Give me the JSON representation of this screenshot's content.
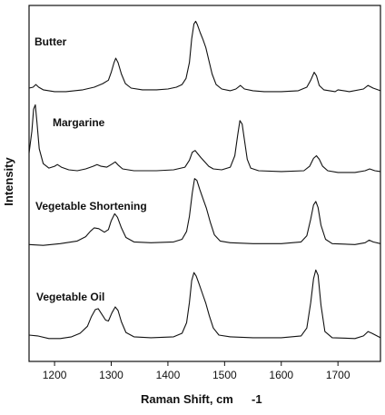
{
  "chart_data": {
    "type": "line",
    "xlabel": "Raman Shift, cm",
    "xlabel_superscript": "-1",
    "ylabel": "Intensity",
    "xlim": [
      1155,
      1775
    ],
    "ylim": [
      0,
      4.05
    ],
    "x_ticks": [
      1200,
      1300,
      1400,
      1500,
      1600,
      1700
    ],
    "grid": false,
    "legend": "none",
    "series": [
      {
        "name": "Butter",
        "offset": 3.02,
        "points": [
          [
            1155,
            0.09
          ],
          [
            1162,
            0.1
          ],
          [
            1167,
            0.13
          ],
          [
            1172,
            0.1
          ],
          [
            1180,
            0.07
          ],
          [
            1200,
            0.05
          ],
          [
            1220,
            0.05
          ],
          [
            1250,
            0.07
          ],
          [
            1270,
            0.1
          ],
          [
            1285,
            0.14
          ],
          [
            1295,
            0.18
          ],
          [
            1300,
            0.27
          ],
          [
            1305,
            0.38
          ],
          [
            1308,
            0.43
          ],
          [
            1312,
            0.38
          ],
          [
            1318,
            0.25
          ],
          [
            1325,
            0.14
          ],
          [
            1335,
            0.09
          ],
          [
            1355,
            0.07
          ],
          [
            1380,
            0.07
          ],
          [
            1400,
            0.08
          ],
          [
            1415,
            0.1
          ],
          [
            1425,
            0.13
          ],
          [
            1432,
            0.2
          ],
          [
            1438,
            0.38
          ],
          [
            1442,
            0.65
          ],
          [
            1446,
            0.82
          ],
          [
            1449,
            0.85
          ],
          [
            1452,
            0.81
          ],
          [
            1457,
            0.72
          ],
          [
            1462,
            0.64
          ],
          [
            1467,
            0.55
          ],
          [
            1472,
            0.41
          ],
          [
            1478,
            0.25
          ],
          [
            1485,
            0.13
          ],
          [
            1495,
            0.08
          ],
          [
            1510,
            0.06
          ],
          [
            1520,
            0.08
          ],
          [
            1528,
            0.12
          ],
          [
            1535,
            0.08
          ],
          [
            1550,
            0.06
          ],
          [
            1570,
            0.05
          ],
          [
            1600,
            0.05
          ],
          [
            1630,
            0.06
          ],
          [
            1645,
            0.1
          ],
          [
            1652,
            0.18
          ],
          [
            1658,
            0.27
          ],
          [
            1662,
            0.23
          ],
          [
            1667,
            0.12
          ],
          [
            1675,
            0.07
          ],
          [
            1695,
            0.05
          ],
          [
            1700,
            0.07
          ],
          [
            1720,
            0.05
          ],
          [
            1745,
            0.08
          ],
          [
            1753,
            0.12
          ],
          [
            1762,
            0.09
          ],
          [
            1775,
            0.06
          ]
        ]
      },
      {
        "name": "Margarine",
        "offset": 2.12,
        "points": [
          [
            1155,
            0.25
          ],
          [
            1160,
            0.5
          ],
          [
            1163,
            0.75
          ],
          [
            1166,
            0.8
          ],
          [
            1169,
            0.6
          ],
          [
            1173,
            0.3
          ],
          [
            1180,
            0.13
          ],
          [
            1190,
            0.08
          ],
          [
            1200,
            0.1
          ],
          [
            1205,
            0.12
          ],
          [
            1212,
            0.09
          ],
          [
            1225,
            0.06
          ],
          [
            1240,
            0.05
          ],
          [
            1255,
            0.07
          ],
          [
            1268,
            0.1
          ],
          [
            1275,
            0.12
          ],
          [
            1282,
            0.1
          ],
          [
            1292,
            0.09
          ],
          [
            1300,
            0.12
          ],
          [
            1307,
            0.15
          ],
          [
            1313,
            0.11
          ],
          [
            1320,
            0.07
          ],
          [
            1340,
            0.05
          ],
          [
            1380,
            0.05
          ],
          [
            1410,
            0.06
          ],
          [
            1430,
            0.09
          ],
          [
            1438,
            0.17
          ],
          [
            1443,
            0.26
          ],
          [
            1448,
            0.28
          ],
          [
            1453,
            0.24
          ],
          [
            1458,
            0.2
          ],
          [
            1465,
            0.15
          ],
          [
            1472,
            0.1
          ],
          [
            1480,
            0.07
          ],
          [
            1495,
            0.06
          ],
          [
            1510,
            0.09
          ],
          [
            1518,
            0.22
          ],
          [
            1523,
            0.45
          ],
          [
            1527,
            0.62
          ],
          [
            1531,
            0.58
          ],
          [
            1535,
            0.4
          ],
          [
            1540,
            0.18
          ],
          [
            1546,
            0.08
          ],
          [
            1560,
            0.05
          ],
          [
            1600,
            0.04
          ],
          [
            1640,
            0.05
          ],
          [
            1650,
            0.1
          ],
          [
            1657,
            0.19
          ],
          [
            1662,
            0.22
          ],
          [
            1667,
            0.18
          ],
          [
            1673,
            0.1
          ],
          [
            1682,
            0.05
          ],
          [
            1700,
            0.03
          ],
          [
            1730,
            0.03
          ],
          [
            1748,
            0.05
          ],
          [
            1756,
            0.07
          ],
          [
            1765,
            0.05
          ],
          [
            1775,
            0.04
          ]
        ]
      },
      {
        "name": "Vegetable Shortening",
        "offset": 1.3,
        "points": [
          [
            1155,
            0.03
          ],
          [
            1180,
            0.02
          ],
          [
            1210,
            0.04
          ],
          [
            1240,
            0.07
          ],
          [
            1255,
            0.12
          ],
          [
            1263,
            0.18
          ],
          [
            1270,
            0.22
          ],
          [
            1278,
            0.21
          ],
          [
            1288,
            0.17
          ],
          [
            1295,
            0.2
          ],
          [
            1300,
            0.3
          ],
          [
            1306,
            0.38
          ],
          [
            1311,
            0.34
          ],
          [
            1318,
            0.22
          ],
          [
            1326,
            0.11
          ],
          [
            1340,
            0.06
          ],
          [
            1370,
            0.05
          ],
          [
            1410,
            0.06
          ],
          [
            1425,
            0.09
          ],
          [
            1433,
            0.18
          ],
          [
            1438,
            0.35
          ],
          [
            1443,
            0.62
          ],
          [
            1447,
            0.78
          ],
          [
            1451,
            0.76
          ],
          [
            1456,
            0.66
          ],
          [
            1462,
            0.55
          ],
          [
            1468,
            0.44
          ],
          [
            1475,
            0.28
          ],
          [
            1482,
            0.14
          ],
          [
            1492,
            0.07
          ],
          [
            1510,
            0.05
          ],
          [
            1550,
            0.04
          ],
          [
            1600,
            0.04
          ],
          [
            1635,
            0.06
          ],
          [
            1645,
            0.13
          ],
          [
            1652,
            0.32
          ],
          [
            1657,
            0.48
          ],
          [
            1661,
            0.52
          ],
          [
            1665,
            0.45
          ],
          [
            1670,
            0.25
          ],
          [
            1678,
            0.09
          ],
          [
            1690,
            0.04
          ],
          [
            1730,
            0.03
          ],
          [
            1748,
            0.05
          ],
          [
            1755,
            0.08
          ],
          [
            1762,
            0.06
          ],
          [
            1775,
            0.04
          ]
        ]
      },
      {
        "name": "Vegetable Oil",
        "offset": 0.22,
        "points": [
          [
            1155,
            0.08
          ],
          [
            1170,
            0.07
          ],
          [
            1190,
            0.04
          ],
          [
            1210,
            0.04
          ],
          [
            1230,
            0.06
          ],
          [
            1245,
            0.1
          ],
          [
            1258,
            0.18
          ],
          [
            1265,
            0.29
          ],
          [
            1272,
            0.37
          ],
          [
            1277,
            0.38
          ],
          [
            1283,
            0.32
          ],
          [
            1290,
            0.25
          ],
          [
            1295,
            0.24
          ],
          [
            1301,
            0.33
          ],
          [
            1307,
            0.4
          ],
          [
            1312,
            0.36
          ],
          [
            1318,
            0.23
          ],
          [
            1326,
            0.11
          ],
          [
            1340,
            0.06
          ],
          [
            1370,
            0.05
          ],
          [
            1410,
            0.06
          ],
          [
            1425,
            0.1
          ],
          [
            1433,
            0.22
          ],
          [
            1438,
            0.45
          ],
          [
            1442,
            0.7
          ],
          [
            1446,
            0.79
          ],
          [
            1450,
            0.75
          ],
          [
            1455,
            0.66
          ],
          [
            1461,
            0.55
          ],
          [
            1467,
            0.44
          ],
          [
            1473,
            0.3
          ],
          [
            1480,
            0.16
          ],
          [
            1490,
            0.08
          ],
          [
            1510,
            0.06
          ],
          [
            1550,
            0.05
          ],
          [
            1600,
            0.05
          ],
          [
            1635,
            0.07
          ],
          [
            1645,
            0.16
          ],
          [
            1652,
            0.45
          ],
          [
            1657,
            0.72
          ],
          [
            1661,
            0.82
          ],
          [
            1665,
            0.76
          ],
          [
            1670,
            0.42
          ],
          [
            1677,
            0.12
          ],
          [
            1690,
            0.05
          ],
          [
            1730,
            0.04
          ],
          [
            1745,
            0.07
          ],
          [
            1753,
            0.12
          ],
          [
            1760,
            0.1
          ],
          [
            1775,
            0.05
          ]
        ]
      }
    ]
  }
}
